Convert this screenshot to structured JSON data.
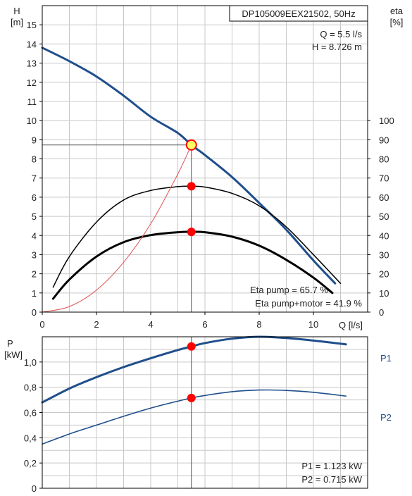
{
  "title": "DP105009EEX21502, 50Hz",
  "operating_point": {
    "q_text": "Q = 5.5 l/s",
    "h_text": "H = 8.726 m"
  },
  "efficiency_text": {
    "pump": "Eta pump = 65.7 %",
    "pump_motor": "Eta pump+motor = 41.9 %"
  },
  "power_text": {
    "p1": "P1 = 1.123 kW",
    "p2": "P2 = 0.715 kW"
  },
  "colors": {
    "blue": "#1f4e8c",
    "black": "#000000",
    "red": "#ff0000",
    "system": "#e05050",
    "grid": "#c8c8c8",
    "marker_fill": "#ffff66"
  },
  "chart_data": [
    {
      "type": "line",
      "title": "DP105009EEX21502, 50Hz",
      "xlabel": "Q [l/s]",
      "xlim": [
        0,
        12
      ],
      "x_ticks": [
        "0",
        "2",
        "4",
        "6",
        "8",
        "10"
      ],
      "y_left": {
        "label_line1": "H",
        "label_line2": "[m]",
        "lim": [
          0,
          16
        ],
        "ticks": [
          "0",
          "1",
          "2",
          "3",
          "4",
          "5",
          "6",
          "7",
          "8",
          "9",
          "10",
          "11",
          "12",
          "13",
          "14",
          "15"
        ]
      },
      "y_right": {
        "label_line1": "eta",
        "label_line2": "[%]",
        "lim": [
          0,
          160
        ],
        "ticks": [
          "0",
          "10",
          "20",
          "30",
          "40",
          "50",
          "60",
          "70",
          "80",
          "90",
          "100"
        ]
      },
      "grid": true,
      "series": [
        {
          "role": "head",
          "axis": "left",
          "color": "#1f4e8c",
          "width": 3,
          "x": [
            0,
            1,
            2,
            3,
            4,
            5,
            5.5,
            6,
            7,
            8,
            9,
            10,
            10.8
          ],
          "y": [
            13.8,
            13.1,
            12.3,
            11.3,
            10.2,
            9.35,
            8.726,
            8.2,
            7.05,
            5.7,
            4.3,
            2.7,
            1.5
          ]
        },
        {
          "role": "eta-pump",
          "axis": "right",
          "color": "#000000",
          "width": 1.5,
          "x": [
            0.4,
            1,
            2,
            3,
            4,
            5,
            5.5,
            6,
            7,
            8,
            9,
            10,
            11
          ],
          "y": [
            13,
            29,
            47,
            58.5,
            63.5,
            65.5,
            65.7,
            65.3,
            62,
            55.5,
            44.5,
            30,
            15
          ]
        },
        {
          "role": "eta-pump-motor",
          "axis": "right",
          "color": "#000000",
          "width": 3,
          "x": [
            0.4,
            1,
            2,
            3,
            4,
            5,
            5.5,
            6,
            7,
            8,
            9,
            10,
            10.7
          ],
          "y": [
            7,
            17,
            29,
            36.5,
            40.2,
            41.7,
            41.9,
            41.7,
            39.4,
            34.7,
            27.3,
            18,
            10
          ]
        },
        {
          "role": "system-curve",
          "axis": "left",
          "color": "#e05050",
          "width": 1,
          "x": [
            0,
            1,
            2,
            3,
            4,
            5,
            5.5
          ],
          "y": [
            0,
            0.29,
            1.15,
            2.6,
            4.61,
            7.21,
            8.726
          ]
        }
      ],
      "points": [
        {
          "role": "duty-point-head",
          "axis": "left",
          "x": 5.5,
          "y": 8.726
        },
        {
          "role": "duty-point-eta-pump",
          "axis": "right",
          "x": 5.5,
          "y": 65.7
        },
        {
          "role": "duty-point-eta-pump-motor",
          "axis": "right",
          "x": 5.5,
          "y": 41.9
        }
      ]
    },
    {
      "type": "line",
      "ylabel_line1": "P",
      "ylabel_line2": "[kW]",
      "xlim": [
        0,
        12
      ],
      "ylim": [
        0,
        1.2
      ],
      "y_ticks": [
        {
          "v": 0,
          "label": "0"
        },
        {
          "v": 0.2,
          "label": "0,2"
        },
        {
          "v": 0.4,
          "label": "0,4"
        },
        {
          "v": 0.6,
          "label": "0,6"
        },
        {
          "v": 0.8,
          "label": "0,8"
        },
        {
          "v": 1.0,
          "label": "1,0"
        }
      ],
      "grid": true,
      "series": [
        {
          "name": "P1",
          "color": "#1f4e8c",
          "width": 3,
          "x": [
            0,
            1,
            2,
            3,
            4,
            5,
            5.5,
            6,
            7,
            8,
            9,
            10,
            11.2
          ],
          "y": [
            0.68,
            0.79,
            0.88,
            0.96,
            1.03,
            1.095,
            1.123,
            1.15,
            1.185,
            1.2,
            1.19,
            1.17,
            1.14
          ]
        },
        {
          "name": "P2",
          "color": "#1f4e8c",
          "width": 1.6,
          "x": [
            0,
            1,
            2,
            3,
            4,
            5,
            5.5,
            6,
            7,
            8,
            9,
            10,
            11.2
          ],
          "y": [
            0.35,
            0.43,
            0.5,
            0.57,
            0.635,
            0.69,
            0.715,
            0.735,
            0.765,
            0.778,
            0.775,
            0.76,
            0.73
          ]
        }
      ],
      "points": [
        {
          "role": "duty-point-p1",
          "x": 5.5,
          "y": 1.123
        },
        {
          "role": "duty-point-p2",
          "x": 5.5,
          "y": 0.715
        }
      ]
    }
  ]
}
